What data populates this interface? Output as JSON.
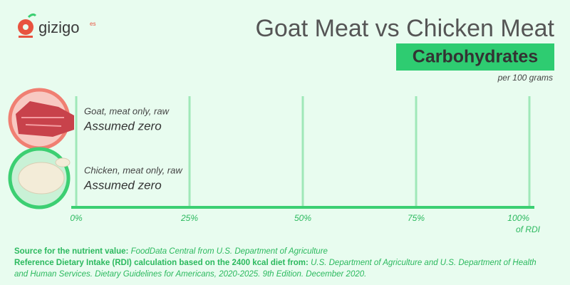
{
  "logo": {
    "name": "gizigo",
    "suffix": "es"
  },
  "chart_data": {
    "type": "hbar",
    "title": "Goat Meat vs Chicken Meat",
    "subtitle": "Carbohydrates",
    "note": "per 100 grams",
    "categories": [
      "Goat, meat only, raw",
      "Chicken, meat only, raw"
    ],
    "values": [
      0,
      0
    ],
    "value_labels": [
      "Assumed zero",
      "Assumed zero"
    ],
    "xlim": [
      0,
      100
    ],
    "xticks": [
      {
        "value": 0,
        "label": "0%"
      },
      {
        "value": 25,
        "label": "25%"
      },
      {
        "value": 50,
        "label": "50%"
      },
      {
        "value": 75,
        "label": "75%"
      },
      {
        "value": 100,
        "label": "100%"
      }
    ],
    "xlabel": "of RDI",
    "colors": [
      "#f07f72",
      "#3ccf72"
    ],
    "grid": true
  },
  "sources": [
    {
      "label": "Source for the nutrient value:",
      "text": "FoodData Central from U.S. Department of Agriculture"
    },
    {
      "label": "Reference Dietary Intake (RDI) calculation based on the 2400 kcal diet from:",
      "text": "U.S. Department of Agriculture and U.S. Department of Health and Human Services. Dietary Guidelines for Americans, 2020-2025. 9th Edition. December 2020."
    }
  ]
}
